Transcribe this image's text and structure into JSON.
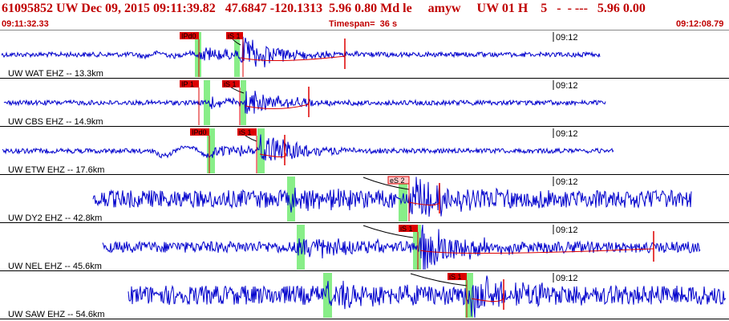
{
  "header": {
    "title": "61095852 UW Dec 09, 2015 09:11:39.82   47.6847 -120.1313  5.96 0.80 Md le     amyw     UW 01 H    5   -  - ---   5.96 0.00",
    "start_time": "09:11:32.33",
    "timespan": "Timespan=  36 s",
    "end_time": "09:12:08.79"
  },
  "colors": {
    "trace": "#0000cc",
    "pick": "#dd0000",
    "window": "#88ee88",
    "background": "#ffffff"
  },
  "traces": [
    {
      "label": "UW WAT EHZ -- 13.3km",
      "time_mark": "09:12",
      "picks": [
        "IPd0",
        "iS 1"
      ],
      "pick_color": "#ff0000"
    },
    {
      "label": "UW CBS EHZ -- 14.9km",
      "time_mark": "09:12",
      "picks": [
        "IP 1",
        "iS 1"
      ],
      "pick_color": "#ff0000"
    },
    {
      "label": "UW ETW EHZ -- 17.6km",
      "time_mark": "09:12",
      "picks": [
        "IPd0",
        "iS 1"
      ],
      "pick_color": "#ff0000"
    },
    {
      "label": "UW DY2 EHZ -- 42.8km",
      "time_mark": "09:12",
      "picks": [
        "eS 2"
      ],
      "pick_color": "#ffcccc"
    },
    {
      "label": "UW NEL EHZ -- 45.6km",
      "time_mark": "09:12",
      "picks": [
        "iS 1"
      ],
      "pick_color": "#ff0000"
    },
    {
      "label": "UW SAW EHZ -- 54.6km",
      "time_mark": "09:12",
      "picks": [
        "iS 1"
      ],
      "pick_color": "#ff0000"
    }
  ]
}
